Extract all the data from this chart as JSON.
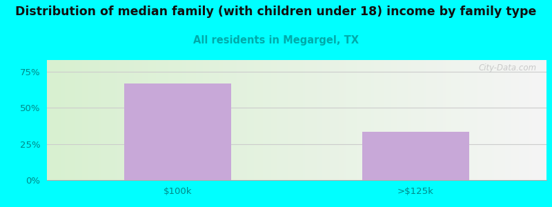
{
  "title": "Distribution of median family (with children under 18) income by family type",
  "subtitle": "All residents in Megargel, TX",
  "categories": [
    "$100k",
    ">$125k"
  ],
  "values": [
    66.7,
    33.3
  ],
  "bar_color": "#c8a8d8",
  "title_fontsize": 12.5,
  "subtitle_fontsize": 10.5,
  "subtitle_color": "#00aaaa",
  "background_color": "#00ffff",
  "chart_bg_color_left": "#d8f0d0",
  "chart_bg_color_right": "#f5f5f5",
  "ylim": [
    0,
    83
  ],
  "yticks": [
    0,
    25,
    50,
    75
  ],
  "ytick_labels": [
    "0%",
    "25%",
    "50%",
    "75%"
  ],
  "tick_color": "#008888",
  "watermark": "City-Data.com"
}
